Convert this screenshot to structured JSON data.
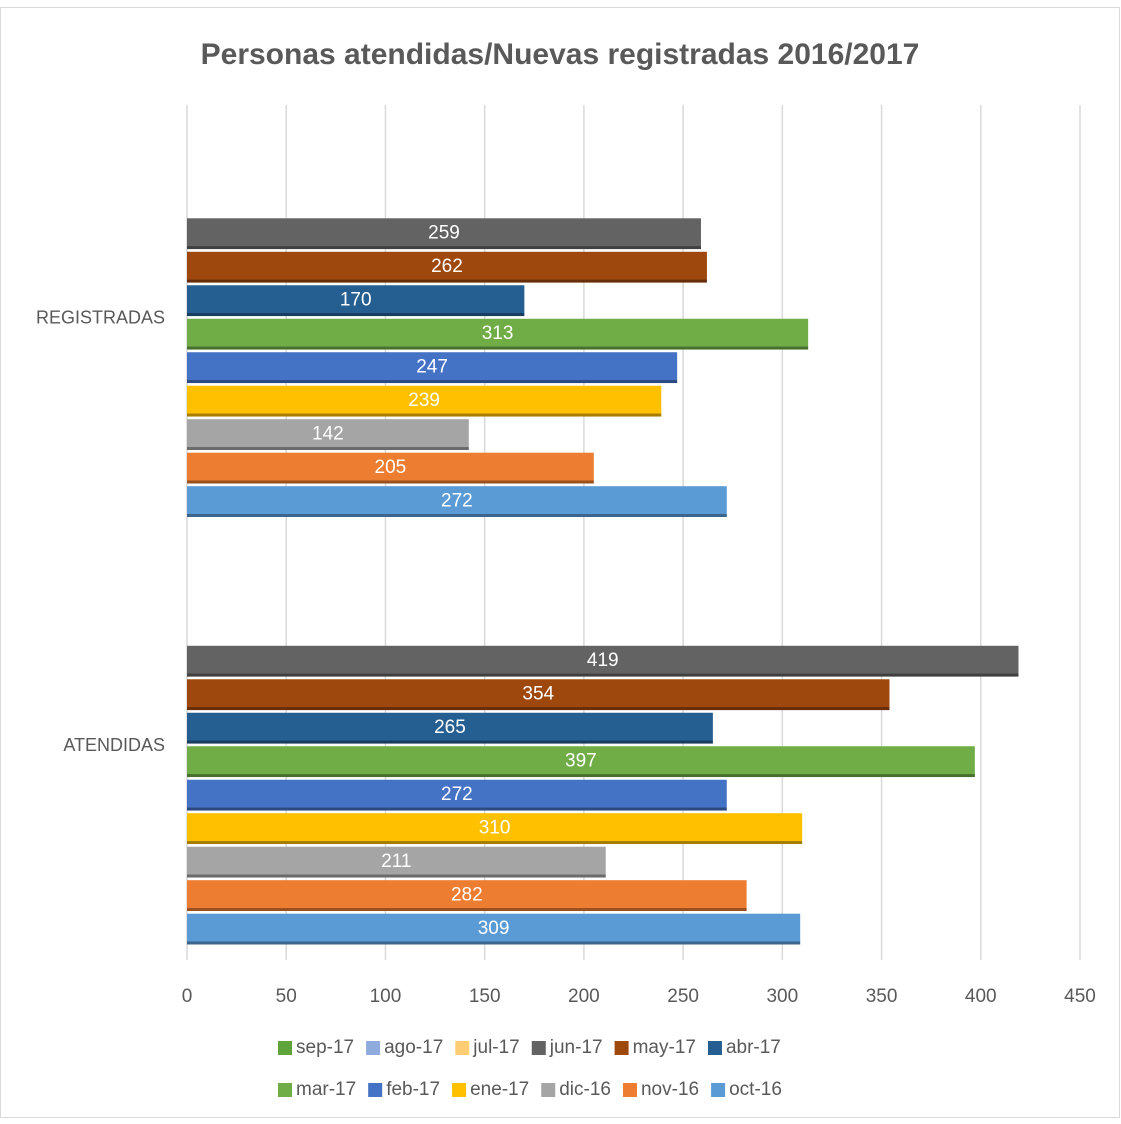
{
  "chart_data": {
    "type": "bar",
    "orientation": "horizontal",
    "title": "Personas atendidas/Nuevas registradas 2016/2017",
    "categories": [
      "ATENDIDAS",
      "REGISTRADAS"
    ],
    "series": [
      {
        "name": "oct-16",
        "color": "#5b9bd5",
        "values": [
          309,
          272
        ]
      },
      {
        "name": "nov-16",
        "color": "#ed7d31",
        "values": [
          282,
          205
        ]
      },
      {
        "name": "dic-16",
        "color": "#a5a5a5",
        "values": [
          211,
          142
        ]
      },
      {
        "name": "ene-17",
        "color": "#ffc000",
        "values": [
          310,
          239
        ]
      },
      {
        "name": "feb-17",
        "color": "#4472c4",
        "values": [
          272,
          247
        ]
      },
      {
        "name": "mar-17",
        "color": "#70ad47",
        "values": [
          397,
          313
        ]
      },
      {
        "name": "abr-17",
        "color": "#255e91",
        "values": [
          265,
          170
        ]
      },
      {
        "name": "may-17",
        "color": "#9e480e",
        "values": [
          354,
          262
        ]
      },
      {
        "name": "jun-17",
        "color": "#636363",
        "values": [
          419,
          259
        ]
      },
      {
        "name": "jul-17",
        "color": "#ffcd73",
        "values": [
          null,
          null
        ]
      },
      {
        "name": "ago-17",
        "color": "#8faadc",
        "values": [
          null,
          null
        ]
      },
      {
        "name": "sep-17",
        "color": "#5ea43a",
        "values": [
          null,
          null
        ]
      }
    ],
    "xlim": [
      0,
      450
    ],
    "xticks": [
      0,
      50,
      100,
      150,
      200,
      250,
      300,
      350,
      400,
      450
    ],
    "grid": true,
    "legend": "bottom"
  }
}
